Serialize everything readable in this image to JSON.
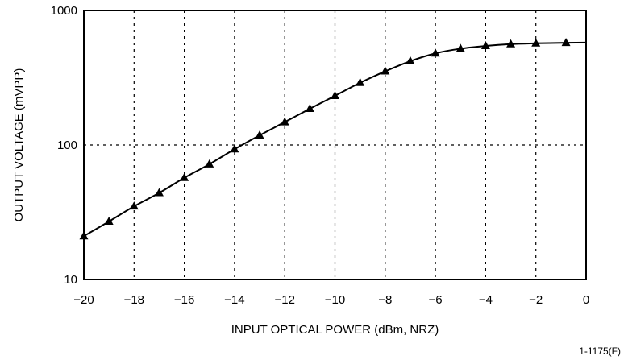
{
  "chart_data": {
    "type": "line",
    "title": "",
    "xlabel": "INPUT OPTICAL POWER (dBm, NRZ)",
    "ylabel": "OUTPUT VOLTAGE (mVPP)",
    "x_scale": "linear",
    "y_scale": "log",
    "xlim": [
      -20,
      0
    ],
    "ylim": [
      10,
      1000
    ],
    "x_ticks": [
      -20,
      -18,
      -16,
      -14,
      -12,
      -10,
      -8,
      -6,
      -4,
      -2,
      0
    ],
    "x_tick_labels": [
      "−20",
      "−18",
      "−16",
      "−14",
      "−12",
      "−10",
      "−8",
      "−6",
      "−4",
      "−2",
      "0"
    ],
    "y_ticks": [
      10,
      100,
      1000
    ],
    "y_tick_labels": [
      "10",
      "100",
      "1000"
    ],
    "grid": true,
    "grid_style": "dashed",
    "legend": "none",
    "marker": "triangle",
    "line_color": "#000000",
    "series": [
      {
        "x": [
          -20,
          -19,
          -18,
          -17,
          -16,
          -15,
          -14,
          -13,
          -12,
          -11,
          -10,
          -9,
          -8,
          -7,
          -6,
          -5,
          -4,
          -3,
          -2,
          -0.8
        ],
        "y": [
          21,
          27,
          35,
          44,
          57,
          72,
          93,
          118,
          148,
          186,
          232,
          290,
          353,
          420,
          480,
          520,
          545,
          562,
          570,
          575
        ]
      }
    ],
    "curve_end": {
      "x": 0,
      "y": 577
    },
    "figure_id": "1-1175(F)"
  }
}
